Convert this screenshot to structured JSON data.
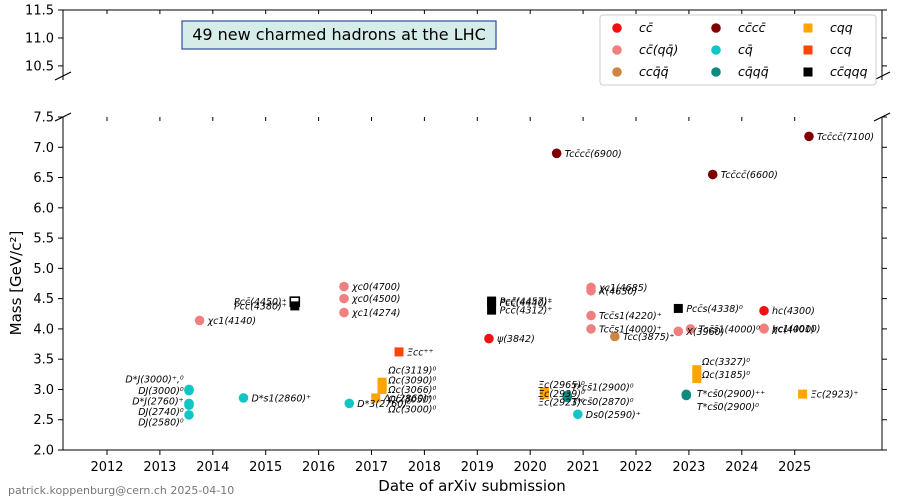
{
  "title": "49 new charmed hadrons at the LHC",
  "footer": "patrick.koppenburg@cern.ch 2025-04-10",
  "colors": {
    "cc": "#ee1111",
    "cc_qq": "#f08080",
    "ccqq": "#cd853f",
    "cccc": "#800000",
    "cq": "#11c5c5",
    "cqqq": "#0f8a80",
    "cqq": "#ffa500",
    "ccq": "#ff4500",
    "ccqqq": "#000000",
    "title_box_bg": "#d6ece8",
    "title_box_border": "#2c4ea0"
  },
  "chart_data": {
    "type": "scatter",
    "xlabel": "Date of arXiv submission",
    "ylabel": "Mass [GeV/c²]",
    "xlim": [
      2011.3,
      2026.7
    ],
    "ylim_lower": [
      2.0,
      7.5
    ],
    "ylim_upper": [
      10.4,
      11.5
    ],
    "broken_y_axis": true,
    "x_ticks": [
      "2012",
      "2013",
      "2014",
      "2015",
      "2016",
      "2017",
      "2018",
      "2019",
      "2020",
      "2021",
      "2022",
      "2023",
      "2024",
      "2025"
    ],
    "y_ticks_lower": [
      "2.0",
      "2.5",
      "3.0",
      "3.5",
      "4.0",
      "4.5",
      "5.0",
      "5.5",
      "6.0",
      "6.5",
      "7.0",
      "7.5"
    ],
    "y_ticks_upper": [
      "10.5",
      "11.0",
      "11.5"
    ],
    "legend": {
      "location": "upper right",
      "entries": [
        {
          "key": "cc",
          "label": "cc̄",
          "marker": "circle"
        },
        {
          "key": "cc_qq",
          "label": "cc̄(qq̄)",
          "marker": "circle"
        },
        {
          "key": "ccqq",
          "label": "ccq̄q̄",
          "marker": "circle"
        },
        {
          "key": "cccc",
          "label": "cc̄cc̄",
          "marker": "circle"
        },
        {
          "key": "cq",
          "label": "cq̄",
          "marker": "circle"
        },
        {
          "key": "cqqq",
          "label": "cq̄qq̄",
          "marker": "circle"
        },
        {
          "key": "cqq",
          "label": "cqq",
          "marker": "square"
        },
        {
          "key": "ccq",
          "label": "ccq",
          "marker": "square"
        },
        {
          "key": "ccqqq",
          "label": "cc̄qqq",
          "marker": "square"
        }
      ]
    },
    "points": [
      {
        "x": 2013.55,
        "y": 2.58,
        "cat": "cq",
        "label": ""
      },
      {
        "x": 2013.55,
        "y": 2.74,
        "cat": "cq",
        "label": ""
      },
      {
        "x": 2013.55,
        "y": 2.77,
        "cat": "cq",
        "label": ""
      },
      {
        "x": 2013.55,
        "y": 2.98,
        "cat": "cq",
        "label": ""
      },
      {
        "x": 2013.55,
        "y": 3.0,
        "cat": "cq",
        "label": ""
      },
      {
        "x": 2013.75,
        "y": 4.14,
        "cat": "cc_qq",
        "label": "χc1(4140)"
      },
      {
        "x": 2014.58,
        "y": 2.86,
        "cat": "cq",
        "label": "D*s1(2860)⁺"
      },
      {
        "x": 2015.55,
        "y": 4.45,
        "cat": "ccqqq",
        "label": "Pcc̄(4450)⁺",
        "hollow": true
      },
      {
        "x": 2015.55,
        "y": 4.38,
        "cat": "ccqqq",
        "label": "Pcc̄(4380)⁺"
      },
      {
        "x": 2016.48,
        "y": 4.7,
        "cat": "cc_qq",
        "label": "χc0(4700)"
      },
      {
        "x": 2016.48,
        "y": 4.5,
        "cat": "cc_qq",
        "label": "χc0(4500)"
      },
      {
        "x": 2016.48,
        "y": 4.27,
        "cat": "cc_qq",
        "label": "χc1(4274)"
      },
      {
        "x": 2016.58,
        "y": 2.77,
        "cat": "cq",
        "label": "D*3(2760)⁰"
      },
      {
        "x": 2017.08,
        "y": 2.86,
        "cat": "cqq",
        "label": "Λc(2860)⁺"
      },
      {
        "x": 2017.2,
        "y": 3.0,
        "cat": "cqq",
        "label": ""
      },
      {
        "x": 2017.2,
        "y": 3.05,
        "cat": "cqq",
        "label": ""
      },
      {
        "x": 2017.2,
        "y": 3.07,
        "cat": "cqq",
        "label": ""
      },
      {
        "x": 2017.2,
        "y": 3.09,
        "cat": "cqq",
        "label": ""
      },
      {
        "x": 2017.2,
        "y": 3.12,
        "cat": "cqq",
        "label": ""
      },
      {
        "x": 2017.52,
        "y": 3.62,
        "cat": "ccq",
        "label": "Ξcc⁺⁺"
      },
      {
        "x": 2019.22,
        "y": 3.84,
        "cat": "cc",
        "label": "ψ(3842)"
      },
      {
        "x": 2019.27,
        "y": 4.46,
        "cat": "ccqqq",
        "label": "Pcc̄(4457)⁺"
      },
      {
        "x": 2019.27,
        "y": 4.44,
        "cat": "ccqqq",
        "label": "Pcc̄(4440)⁺"
      },
      {
        "x": 2019.27,
        "y": 4.31,
        "cat": "ccqqq",
        "label": "Pcc̄(4312)⁺"
      },
      {
        "x": 2020.27,
        "y": 2.92,
        "cat": "cqq",
        "label": ""
      },
      {
        "x": 2020.27,
        "y": 2.94,
        "cat": "cqq",
        "label": ""
      },
      {
        "x": 2020.27,
        "y": 2.965,
        "cat": "cqq",
        "label": ""
      },
      {
        "x": 2020.5,
        "y": 6.9,
        "cat": "cccc",
        "label": "Tcc̄cc̄(6900)"
      },
      {
        "x": 2020.7,
        "y": 2.87,
        "cat": "cqqq",
        "label": ""
      },
      {
        "x": 2020.7,
        "y": 2.9,
        "cat": "cqqq",
        "label": ""
      },
      {
        "x": 2020.9,
        "y": 2.59,
        "cat": "cq",
        "label": "Ds0(2590)⁺"
      },
      {
        "x": 2021.15,
        "y": 4.685,
        "cat": "cc_qq",
        "label": "χc1(4685)"
      },
      {
        "x": 2021.15,
        "y": 4.63,
        "cat": "cc_qq",
        "label": "X(4630)"
      },
      {
        "x": 2021.15,
        "y": 4.22,
        "cat": "cc_qq",
        "label": "Tcc̄s1(4220)⁺"
      },
      {
        "x": 2021.15,
        "y": 4.0,
        "cat": "cc_qq",
        "label": "Tcc̄s1(4000)⁺"
      },
      {
        "x": 2021.6,
        "y": 3.875,
        "cat": "ccqq",
        "label": "Tcc(3875)⁺"
      },
      {
        "x": 2022.8,
        "y": 3.96,
        "cat": "cc_qq",
        "label": "X(3960)"
      },
      {
        "x": 2022.8,
        "y": 4.338,
        "cat": "ccqqq",
        "label": "Pcc̄s(4338)⁰"
      },
      {
        "x": 2023.03,
        "y": 4.0,
        "cat": "cc_qq",
        "label": "Tcc̄s̄1(4000)⁰"
      },
      {
        "x": 2022.95,
        "y": 2.9,
        "cat": "cqqq",
        "label": ""
      },
      {
        "x": 2022.95,
        "y": 2.92,
        "cat": "cqqq",
        "label": ""
      },
      {
        "x": 2023.15,
        "y": 3.18,
        "cat": "cqq",
        "label": ""
      },
      {
        "x": 2023.15,
        "y": 3.25,
        "cat": "cqq",
        "label": ""
      },
      {
        "x": 2023.15,
        "y": 3.327,
        "cat": "cqq",
        "label": ""
      },
      {
        "x": 2023.45,
        "y": 6.55,
        "cat": "cccc",
        "label": "Tcc̄cc̄(6600)"
      },
      {
        "x": 2024.42,
        "y": 4.3,
        "cat": "cc",
        "label": "hc(4300)"
      },
      {
        "x": 2024.42,
        "y": 4.01,
        "cat": "cc_qq",
        "label": "χc1(4010)"
      },
      {
        "x": 2024.42,
        "y": 4.0,
        "cat": "cc_qq",
        "label": "hc(4000)"
      },
      {
        "x": 2025.15,
        "y": 2.923,
        "cat": "cqq",
        "label": "Ξc(2923)⁺"
      },
      {
        "x": 2025.27,
        "y": 7.18,
        "cat": "cccc",
        "label": "Tcc̄cc̄(7100)"
      }
    ],
    "group_labels": [
      {
        "x": 2013.45,
        "y": 3.17,
        "label": "D*J(3000)⁺,⁰"
      },
      {
        "x": 2013.45,
        "y": 2.98,
        "label": "DJ(3000)⁰"
      },
      {
        "x": 2013.45,
        "y": 2.81,
        "label": "D*J(2760)⁺"
      },
      {
        "x": 2013.45,
        "y": 2.64,
        "label": "DJ(2740)⁰"
      },
      {
        "x": 2013.45,
        "y": 2.46,
        "label": "DJ(2580)⁰"
      },
      {
        "x": 2017.32,
        "y": 3.32,
        "label": "Ωc(3119)⁰"
      },
      {
        "x": 2017.32,
        "y": 3.16,
        "label": "Ωc(3090)⁰"
      },
      {
        "x": 2017.32,
        "y": 3.0,
        "label": "Ωc(3066)⁰"
      },
      {
        "x": 2017.32,
        "y": 2.84,
        "label": "Ωc(3050)⁰"
      },
      {
        "x": 2017.32,
        "y": 2.68,
        "label": "Ωc(3000)⁰"
      },
      {
        "x": 2020.15,
        "y": 3.08,
        "label": "Ξc(2965)⁰"
      },
      {
        "x": 2020.15,
        "y": 2.93,
        "label": "Ξc(2939)⁰"
      },
      {
        "x": 2020.15,
        "y": 2.79,
        "label": "Ξc(2923)⁰"
      },
      {
        "x": 2020.78,
        "y": 3.04,
        "label": "T*cs̄1(2900)⁰"
      },
      {
        "x": 2020.78,
        "y": 2.8,
        "label": "T*cs̄0(2870)⁰"
      },
      {
        "x": 2023.25,
        "y": 3.46,
        "label": "Ωc(3327)⁰"
      },
      {
        "x": 2023.25,
        "y": 3.25,
        "label": "Ωc(3185)⁰"
      },
      {
        "x": 2023.15,
        "y": 2.93,
        "label": "T*cs̄0(2900)⁺⁺"
      },
      {
        "x": 2023.15,
        "y": 2.72,
        "label": "T*cs̄0(2900)⁰"
      }
    ]
  }
}
